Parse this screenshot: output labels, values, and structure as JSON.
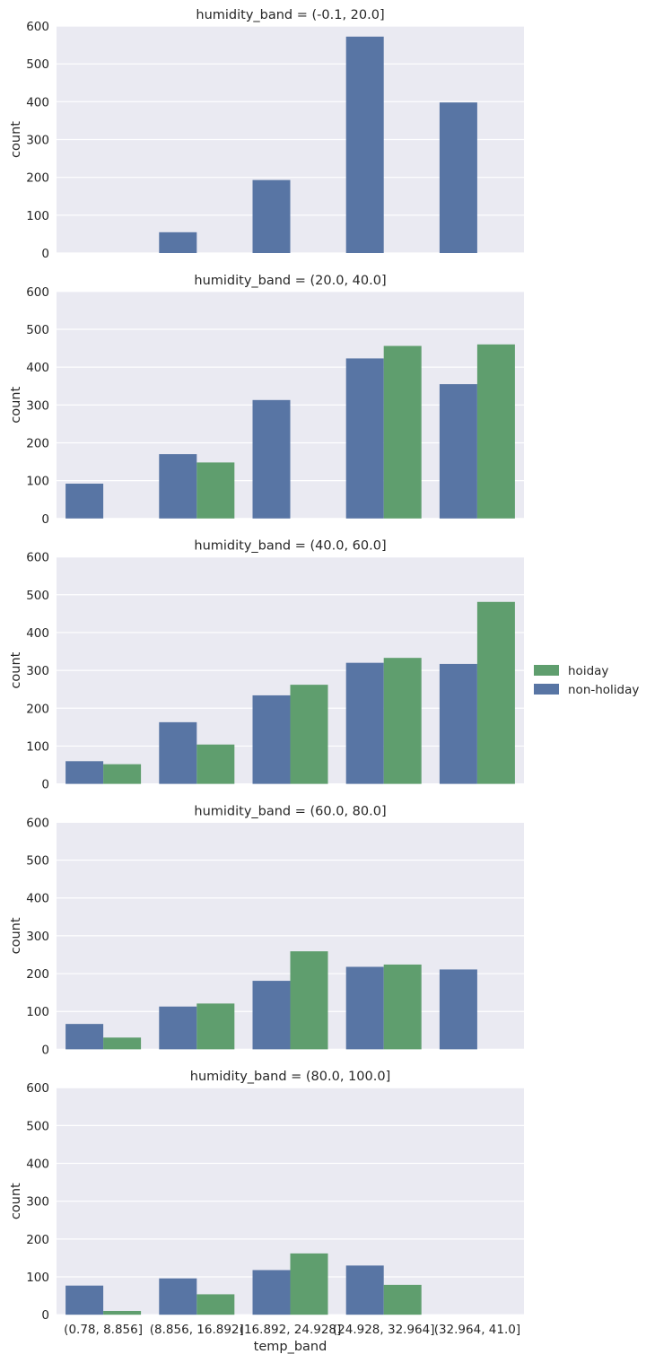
{
  "chart_data": {
    "type": "bar",
    "facet_variable": "humidity_band",
    "xlabel": "temp_band",
    "ylabel": "count",
    "ylim": [
      0,
      600
    ],
    "yticks": [
      0,
      100,
      200,
      300,
      400,
      500,
      600
    ],
    "grid": true,
    "legend_placement": "right",
    "categories": [
      "(0.78, 8.856]",
      "(8.856, 16.892]",
      "(16.892, 24.928]",
      "(24.928, 32.964]",
      "(32.964, 41.0]"
    ],
    "series_styles": [
      {
        "name": "non-holiday",
        "color": "#5875a4"
      },
      {
        "name": "hoiday",
        "color": "#5f9e6e"
      }
    ],
    "legend": [
      {
        "name": "hoiday",
        "color": "#5f9e6e"
      },
      {
        "name": "non-holiday",
        "color": "#5875a4"
      }
    ],
    "panels": [
      {
        "title": "humidity_band = (-0.1, 20.0]",
        "series": [
          {
            "name": "non-holiday",
            "values": [
              0,
              55,
              193,
              572,
              398
            ]
          },
          {
            "name": "hoiday",
            "values": [
              0,
              0,
              0,
              0,
              0
            ]
          }
        ]
      },
      {
        "title": "humidity_band = (20.0, 40.0]",
        "series": [
          {
            "name": "non-holiday",
            "values": [
              92,
              170,
              313,
              423,
              355
            ]
          },
          {
            "name": "hoiday",
            "values": [
              0,
              148,
              0,
              456,
              460
            ]
          }
        ]
      },
      {
        "title": "humidity_band = (40.0, 60.0]",
        "series": [
          {
            "name": "non-holiday",
            "values": [
              60,
              163,
              234,
              320,
              317
            ]
          },
          {
            "name": "hoiday",
            "values": [
              52,
              104,
              262,
              333,
              481
            ]
          }
        ]
      },
      {
        "title": "humidity_band = (60.0, 80.0]",
        "series": [
          {
            "name": "non-holiday",
            "values": [
              67,
              113,
              181,
              218,
              211
            ]
          },
          {
            "name": "hoiday",
            "values": [
              31,
              121,
              259,
              224,
              0
            ]
          }
        ]
      },
      {
        "title": "humidity_band = (80.0, 100.0]",
        "series": [
          {
            "name": "non-holiday",
            "values": [
              77,
              96,
              118,
              130,
              0
            ]
          },
          {
            "name": "hoiday",
            "values": [
              10,
              54,
              162,
              79,
              0
            ]
          }
        ]
      }
    ]
  }
}
